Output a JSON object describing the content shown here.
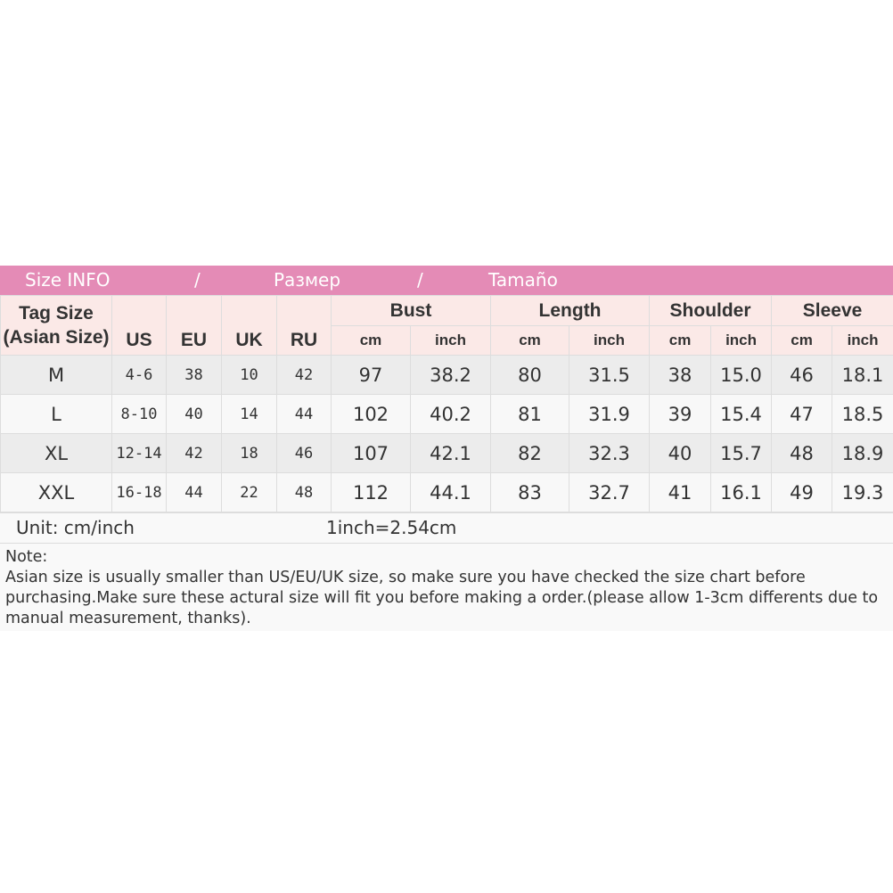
{
  "title": {
    "en": "Size INFO",
    "sep1": "/",
    "ru": "Размер",
    "sep2": "/",
    "es": "Tamaño"
  },
  "colors": {
    "title_bar": "#e48bb6",
    "header_bg": "#fbe9e7",
    "row_odd": "#ececec",
    "row_even": "#f8f8f8"
  },
  "headers": {
    "tag_size": "Tag Size",
    "tag_size_sub": "(Asian Size)",
    "us": "US",
    "eu": "EU",
    "uk": "UK",
    "ru": "RU",
    "bust": "Bust",
    "length": "Length",
    "shoulder": "Shoulder",
    "sleeve": "Sleeve",
    "cm": "cm",
    "inch": "inch"
  },
  "rows": [
    {
      "tag": "M",
      "us": "4-6",
      "eu": "38",
      "uk": "10",
      "ru": "42",
      "bust_cm": "97",
      "bust_in": "38.2",
      "len_cm": "80",
      "len_in": "31.5",
      "sh_cm": "38",
      "sh_in": "15.0",
      "sl_cm": "46",
      "sl_in": "18.1"
    },
    {
      "tag": "L",
      "us": "8-10",
      "eu": "40",
      "uk": "14",
      "ru": "44",
      "bust_cm": "102",
      "bust_in": "40.2",
      "len_cm": "81",
      "len_in": "31.9",
      "sh_cm": "39",
      "sh_in": "15.4",
      "sl_cm": "47",
      "sl_in": "18.5"
    },
    {
      "tag": "XL",
      "us": "12-14",
      "eu": "42",
      "uk": "18",
      "ru": "46",
      "bust_cm": "107",
      "bust_in": "42.1",
      "len_cm": "82",
      "len_in": "32.3",
      "sh_cm": "40",
      "sh_in": "15.7",
      "sl_cm": "48",
      "sl_in": "18.9"
    },
    {
      "tag": "XXL",
      "us": "16-18",
      "eu": "44",
      "uk": "22",
      "ru": "48",
      "bust_cm": "112",
      "bust_in": "44.1",
      "len_cm": "83",
      "len_in": "32.7",
      "sh_cm": "41",
      "sh_in": "16.1",
      "sl_cm": "49",
      "sl_in": "19.3"
    }
  ],
  "unit": "Unit: cm/inch",
  "conversion": "1inch=2.54cm",
  "note": {
    "label": "Note:",
    "text": "Asian size is usually smaller than US/EU/UK size, so make sure you have checked the size chart before purchasing.Make sure these actural size will fit you before making a order.(please allow 1-3cm differents due to manual measurement, thanks)."
  }
}
